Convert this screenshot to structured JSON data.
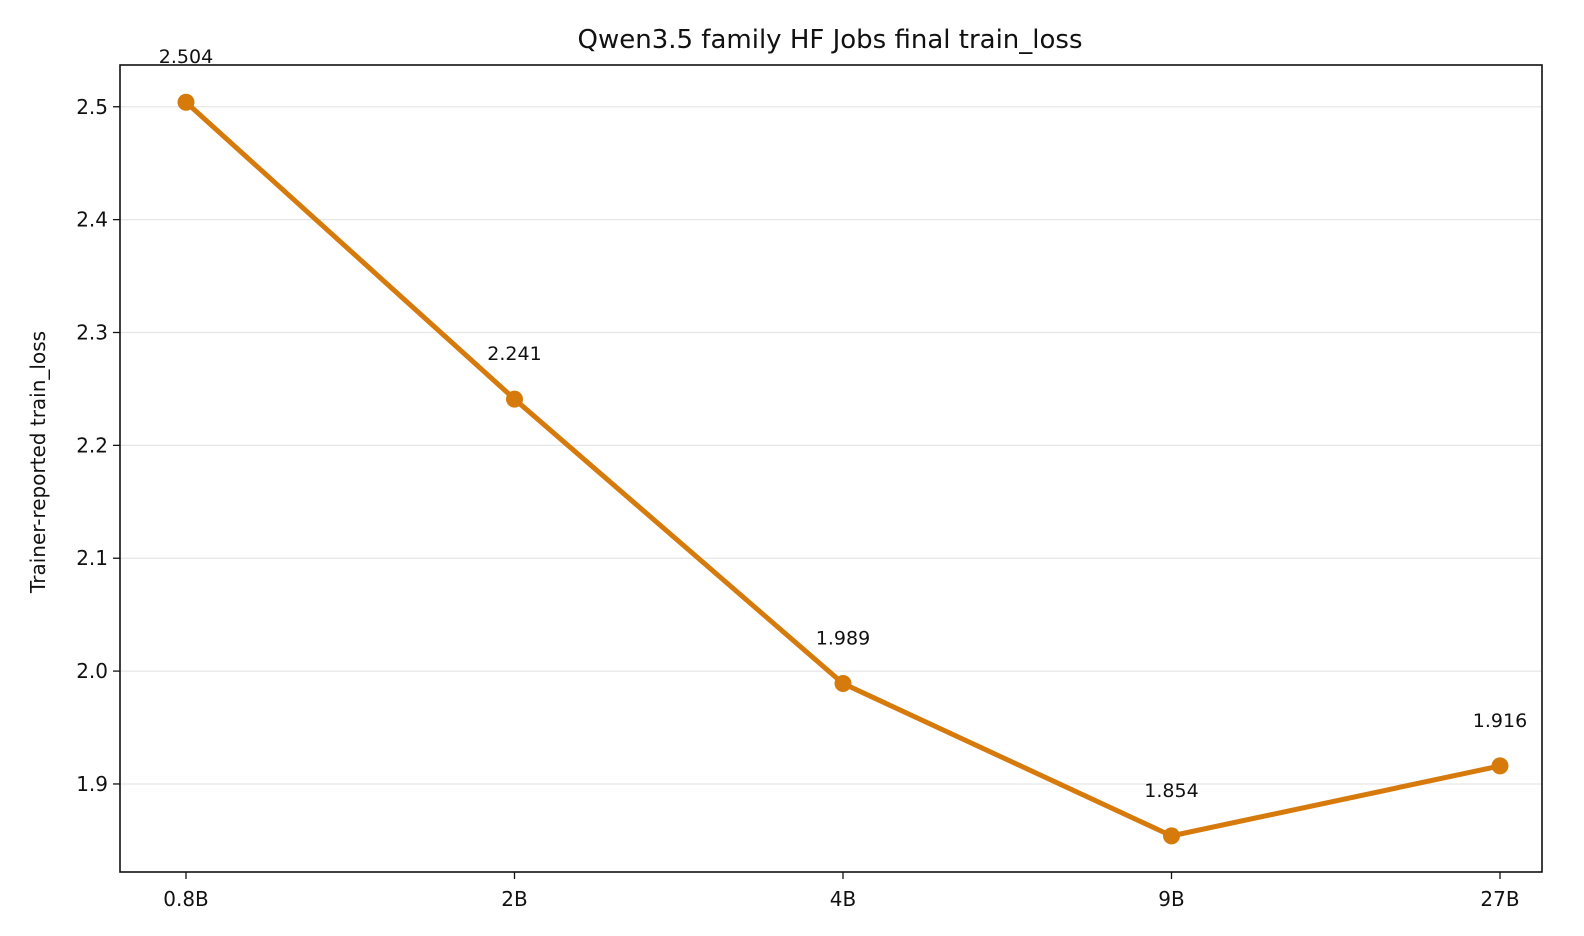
{
  "chart_data": {
    "type": "line",
    "title": "Qwen3.5 family HF Jobs final train_loss",
    "xlabel": "",
    "ylabel": "Trainer-reported train_loss",
    "categories": [
      "0.8B",
      "2B",
      "4B",
      "9B",
      "27B"
    ],
    "values": [
      2.504,
      2.241,
      1.989,
      1.854,
      1.916
    ],
    "data_labels": [
      "2.504",
      "2.241",
      "1.989",
      "1.854",
      "1.916"
    ],
    "yticks": [
      1.9,
      2.0,
      2.1,
      2.2,
      2.3,
      2.4,
      2.5
    ],
    "ytick_labels": [
      "1.9",
      "2.0",
      "2.1",
      "2.2",
      "2.3",
      "2.4",
      "2.5"
    ],
    "ylim": [
      1.822,
      2.537
    ],
    "grid": "horizontal",
    "line_color": "#d67a0c"
  }
}
